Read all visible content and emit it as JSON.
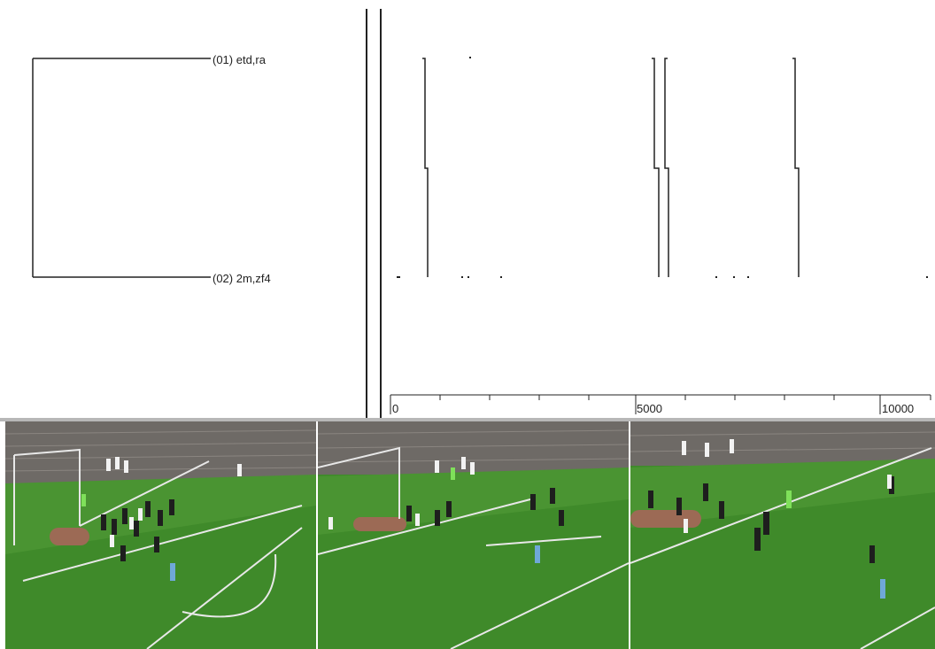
{
  "tree": {
    "leaves": [
      {
        "label": "(01) etd,ra"
      },
      {
        "label": "(02) 2m,zf4"
      }
    ]
  },
  "timeline": {
    "ticks": [
      {
        "label": "0",
        "value": 0
      },
      {
        "label": "5000",
        "value": 5000
      },
      {
        "label": "10000",
        "value": 10000
      }
    ],
    "max_value": 10500
  },
  "frames": [
    {
      "scene": "corner-kick-setup"
    },
    {
      "scene": "header-in-box"
    },
    {
      "scene": "goalmouth-scramble"
    }
  ],
  "colors": {
    "pitch": "#3f8a2a",
    "pitch_light": "#4d9a34",
    "line": "#1a1a1a",
    "separator": "#b7b7b7"
  }
}
